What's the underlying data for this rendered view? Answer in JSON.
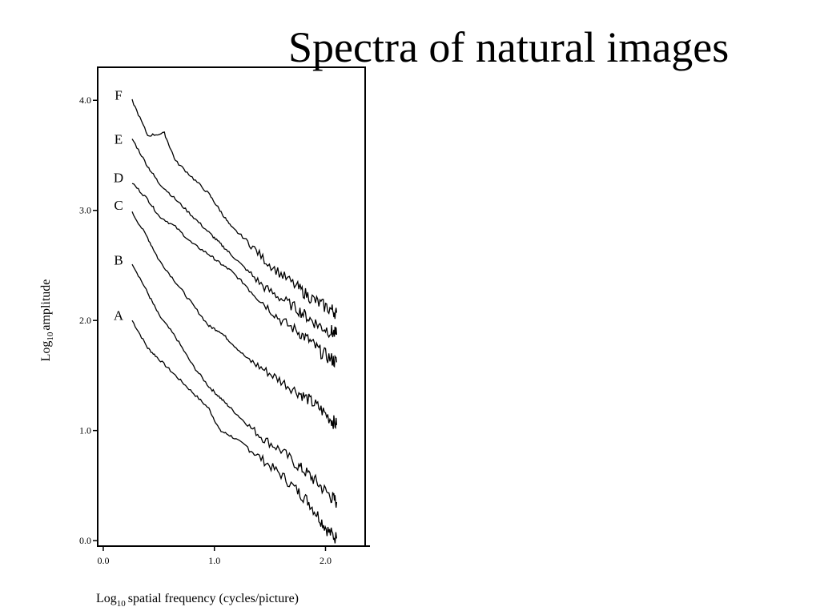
{
  "slide": {
    "title": "Spectra of natural images"
  },
  "chart_data": {
    "type": "line",
    "title": "",
    "xlabel": "spatial frequency  (cycles/picture)",
    "xlabel_prefix": "Log",
    "xlabel_subscript": "10",
    "ylabel": "amplitude",
    "ylabel_prefix": "Log",
    "ylabel_subscript": "10",
    "xlim": [
      -0.05,
      2.4
    ],
    "ylim": [
      -0.05,
      4.3
    ],
    "grid": false,
    "legend": "none",
    "line_color": "#000000",
    "x_ticks": [
      {
        "value": 0.0,
        "label": "0.0"
      },
      {
        "value": 1.0,
        "label": "1.0"
      },
      {
        "value": 2.0,
        "label": "2.0"
      }
    ],
    "y_ticks": [
      {
        "value": 0.0,
        "label": "0.0"
      },
      {
        "value": 1.0,
        "label": "1.0"
      },
      {
        "value": 2.0,
        "label": "2.0"
      },
      {
        "value": 3.0,
        "label": "3.0"
      },
      {
        "value": 4.0,
        "label": "4.0"
      }
    ],
    "series": [
      {
        "name": "A",
        "label_y": 2.05,
        "x": [
          0.26,
          0.4,
          0.5,
          0.65,
          0.8,
          0.95,
          1.05,
          1.15,
          1.3,
          1.45,
          1.6,
          1.75,
          1.85,
          1.95,
          2.03,
          2.1
        ],
        "values": [
          2.0,
          1.75,
          1.65,
          1.5,
          1.35,
          1.2,
          1.0,
          0.95,
          0.85,
          0.72,
          0.6,
          0.45,
          0.35,
          0.2,
          0.08,
          0.02
        ]
      },
      {
        "name": "B",
        "label_y": 2.55,
        "x": [
          0.26,
          0.4,
          0.5,
          0.65,
          0.8,
          0.95,
          1.05,
          1.15,
          1.3,
          1.45,
          1.6,
          1.75,
          1.85,
          1.95,
          2.05,
          2.1
        ],
        "values": [
          2.52,
          2.25,
          2.05,
          1.85,
          1.6,
          1.4,
          1.3,
          1.2,
          1.05,
          0.92,
          0.82,
          0.68,
          0.6,
          0.5,
          0.4,
          0.35
        ]
      },
      {
        "name": "C",
        "label_y": 3.05,
        "x": [
          0.26,
          0.4,
          0.5,
          0.65,
          0.8,
          0.95,
          1.05,
          1.15,
          1.3,
          1.45,
          1.6,
          1.75,
          1.85,
          1.95,
          2.05,
          2.1
        ],
        "values": [
          2.98,
          2.75,
          2.55,
          2.35,
          2.15,
          1.95,
          1.9,
          1.8,
          1.65,
          1.55,
          1.45,
          1.35,
          1.28,
          1.2,
          1.1,
          1.05
        ]
      },
      {
        "name": "D",
        "label_y": 3.3,
        "x": [
          0.26,
          0.4,
          0.5,
          0.65,
          0.8,
          0.95,
          1.05,
          1.15,
          1.3,
          1.45,
          1.6,
          1.75,
          1.85,
          1.95,
          2.05,
          2.1
        ],
        "values": [
          3.25,
          3.1,
          2.95,
          2.85,
          2.7,
          2.6,
          2.52,
          2.45,
          2.3,
          2.15,
          2.0,
          1.9,
          1.82,
          1.72,
          1.65,
          1.62
        ]
      },
      {
        "name": "E",
        "label_y": 3.65,
        "x": [
          0.26,
          0.4,
          0.5,
          0.65,
          0.8,
          0.95,
          1.05,
          1.15,
          1.3,
          1.45,
          1.6,
          1.75,
          1.85,
          1.95,
          2.05,
          2.1
        ],
        "values": [
          3.65,
          3.4,
          3.25,
          3.1,
          2.95,
          2.8,
          2.7,
          2.6,
          2.45,
          2.3,
          2.2,
          2.1,
          2.02,
          1.95,
          1.9,
          1.87
        ]
      },
      {
        "name": "F",
        "label_y": 4.05,
        "x": [
          0.26,
          0.4,
          0.55,
          0.65,
          0.8,
          0.95,
          1.05,
          1.15,
          1.3,
          1.45,
          1.6,
          1.75,
          1.85,
          1.95,
          2.05,
          2.1
        ],
        "values": [
          4.0,
          3.68,
          3.7,
          3.45,
          3.3,
          3.15,
          3.0,
          2.85,
          2.72,
          2.55,
          2.42,
          2.3,
          2.22,
          2.15,
          2.1,
          2.07
        ]
      }
    ]
  }
}
